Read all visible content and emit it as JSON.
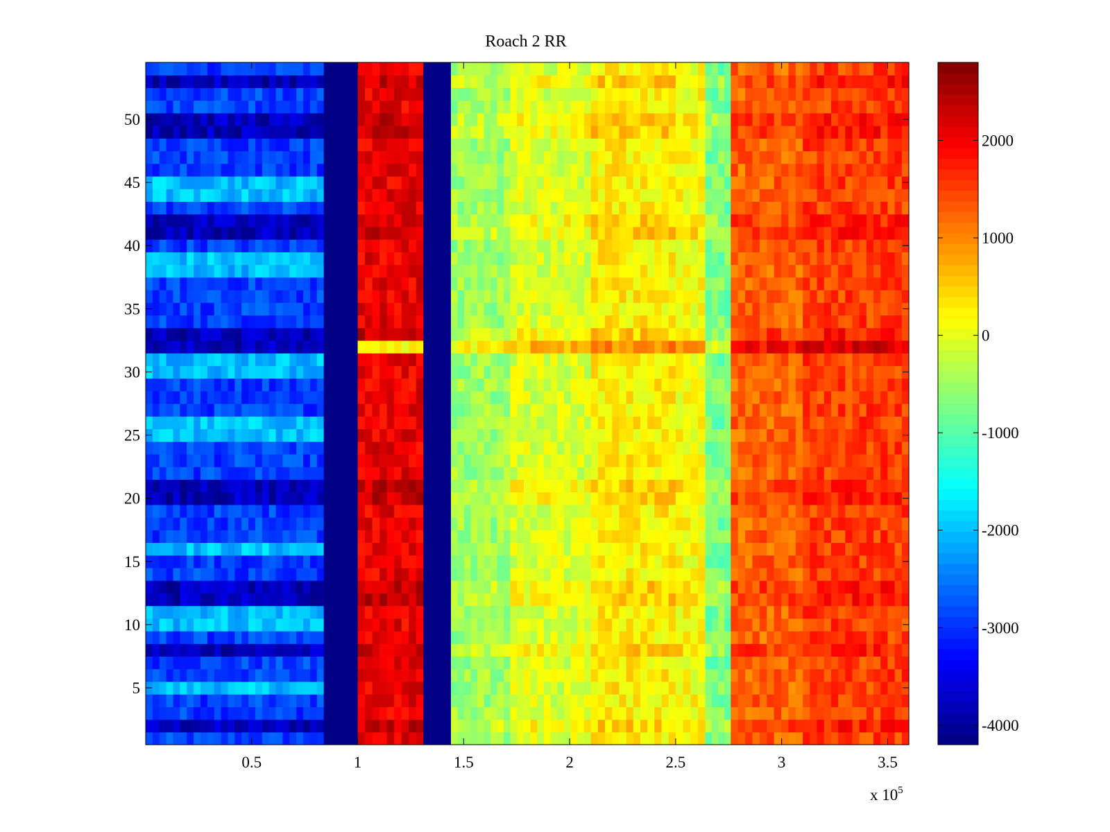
{
  "chart_data": {
    "type": "heatmap",
    "title": "Roach 2 RR",
    "xlabel": "",
    "ylabel": "",
    "x_range": [
      0,
      360000
    ],
    "y_range": [
      0.5,
      54.5
    ],
    "x_exponent_label": "x 10",
    "x_exponent_power": "5",
    "x_ticks": [
      {
        "value": 50000,
        "label": "0.5"
      },
      {
        "value": 100000,
        "label": "1"
      },
      {
        "value": 150000,
        "label": "1.5"
      },
      {
        "value": 200000,
        "label": "2"
      },
      {
        "value": 250000,
        "label": "2.5"
      },
      {
        "value": 300000,
        "label": "3"
      },
      {
        "value": 350000,
        "label": "3.5"
      }
    ],
    "y_ticks": [
      {
        "value": 5,
        "label": "5"
      },
      {
        "value": 10,
        "label": "10"
      },
      {
        "value": 15,
        "label": "15"
      },
      {
        "value": 20,
        "label": "20"
      },
      {
        "value": 25,
        "label": "25"
      },
      {
        "value": 30,
        "label": "30"
      },
      {
        "value": 35,
        "label": "35"
      },
      {
        "value": 40,
        "label": "40"
      },
      {
        "value": 45,
        "label": "45"
      },
      {
        "value": 50,
        "label": "50"
      }
    ],
    "colormap": "jet",
    "color_range": [
      -4200,
      2800
    ],
    "colorbar_ticks": [
      {
        "value": 2000,
        "label": "2000"
      },
      {
        "value": 1000,
        "label": "1000"
      },
      {
        "value": 0,
        "label": "0"
      },
      {
        "value": -1000,
        "label": "-1000"
      },
      {
        "value": -2000,
        "label": "-2000"
      },
      {
        "value": -3000,
        "label": "-3000"
      },
      {
        "value": -4000,
        "label": "-4000"
      }
    ],
    "column_bands": [
      {
        "x_start": 0,
        "x_end": 84000,
        "value": -2900
      },
      {
        "x_start": 84000,
        "x_end": 100000,
        "value": -4150
      },
      {
        "x_start": 100000,
        "x_end": 131000,
        "value": 2050
      },
      {
        "x_start": 131000,
        "x_end": 144000,
        "value": -4150
      },
      {
        "x_start": 144000,
        "x_end": 172000,
        "value": -500
      },
      {
        "x_start": 172000,
        "x_end": 210000,
        "value": -100
      },
      {
        "x_start": 210000,
        "x_end": 250000,
        "value": 250
      },
      {
        "x_start": 250000,
        "x_end": 264000,
        "value": 150
      },
      {
        "x_start": 264000,
        "x_end": 276000,
        "value": -750
      },
      {
        "x_start": 276000,
        "x_end": 310000,
        "value": 1250
      },
      {
        "x_start": 310000,
        "x_end": 360000,
        "value": 1500
      }
    ],
    "row_count": 54,
    "low_rows": [
      2,
      8,
      12,
      13,
      20,
      21,
      32,
      33,
      41,
      42,
      49,
      50,
      53
    ],
    "high_rows": [
      5,
      10,
      11,
      16,
      25,
      26,
      30,
      31,
      38,
      39,
      44,
      45
    ]
  }
}
